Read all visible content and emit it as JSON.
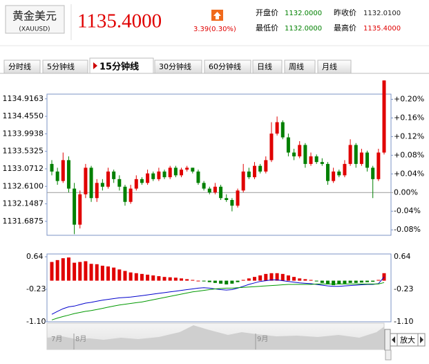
{
  "header": {
    "name": "黄金美元",
    "code": "(XAUUSD)",
    "price": "1135.4000",
    "change": "3.39(0.30%)",
    "stats": [
      {
        "label": "开盘价",
        "value": "1132.0000"
      },
      {
        "label": "昨收价",
        "value": "1132.0100"
      },
      {
        "label": "最低价",
        "value": "1132.0000"
      },
      {
        "label": "最高价",
        "value": "1135.4000"
      }
    ]
  },
  "tabs": [
    "分时线",
    "5分钟线",
    "15分钟线",
    "30分钟线",
    "60分钟线",
    "日线",
    "周线",
    "月线"
  ],
  "navigator": {
    "labels": [
      "7月",
      "8月",
      "9月"
    ],
    "button": "放大"
  },
  "chart_data": [
    {
      "type": "candlestick",
      "up_color": "#e00000",
      "down_color": "#008000",
      "open": [
        1133.2,
        1133.0,
        1132.75,
        1133.3,
        1132.55,
        1131.6,
        1132.4,
        1133.1,
        1132.3,
        1132.7,
        1132.6,
        1133.0,
        1132.8,
        1132.6,
        1132.2,
        1132.55,
        1132.8,
        1132.7,
        1132.95,
        1132.8,
        1133.0,
        1132.85,
        1133.1,
        1132.9,
        1133.05,
        1133.1,
        1133.0,
        1132.7,
        1132.55,
        1132.45,
        1132.6,
        1132.3,
        1132.25,
        1132.1,
        1132.5,
        1133.0,
        1132.85,
        1133.15,
        1133.0,
        1133.3,
        1134.0,
        1134.3,
        1133.9,
        1133.5,
        1133.4,
        1133.7,
        1133.2,
        1133.4,
        1133.25,
        1133.2,
        1132.75,
        1133.0,
        1132.9,
        1133.2,
        1133.7,
        1133.2,
        1133.5,
        1133.1,
        1132.8,
        1133.5
      ],
      "high": [
        1133.3,
        1133.1,
        1133.5,
        1133.4,
        1132.7,
        1132.5,
        1133.2,
        1133.15,
        1132.8,
        1132.8,
        1133.1,
        1133.05,
        1132.9,
        1132.65,
        1132.65,
        1132.9,
        1132.85,
        1133.05,
        1133.0,
        1133.1,
        1133.05,
        1133.15,
        1133.15,
        1133.1,
        1133.15,
        1133.1,
        1133.05,
        1132.75,
        1132.6,
        1132.7,
        1132.65,
        1132.4,
        1132.3,
        1132.55,
        1133.2,
        1133.1,
        1133.25,
        1133.2,
        1133.4,
        1134.3,
        1134.45,
        1134.35,
        1134.0,
        1133.6,
        1133.8,
        1133.75,
        1133.5,
        1133.45,
        1133.35,
        1133.25,
        1133.1,
        1133.05,
        1133.3,
        1133.85,
        1133.75,
        1133.6,
        1133.55,
        1133.15,
        1133.6,
        1135.4
      ],
      "low": [
        1132.9,
        1132.65,
        1132.7,
        1132.45,
        1131.35,
        1131.5,
        1132.3,
        1132.2,
        1132.2,
        1132.5,
        1132.55,
        1132.7,
        1132.5,
        1132.1,
        1132.15,
        1132.5,
        1132.65,
        1132.65,
        1132.75,
        1132.75,
        1132.8,
        1132.8,
        1132.85,
        1132.85,
        1133.0,
        1132.95,
        1132.65,
        1132.5,
        1132.4,
        1132.4,
        1132.25,
        1132.2,
        1131.95,
        1132.05,
        1132.45,
        1132.8,
        1132.8,
        1132.95,
        1132.95,
        1133.25,
        1133.95,
        1133.85,
        1133.4,
        1133.3,
        1133.35,
        1133.1,
        1133.15,
        1133.2,
        1133.15,
        1132.65,
        1132.7,
        1132.85,
        1132.85,
        1133.15,
        1133.1,
        1133.15,
        1133.0,
        1132.3,
        1132.75,
        1133.45
      ],
      "close": [
        1133.0,
        1132.75,
        1133.3,
        1132.55,
        1131.6,
        1132.4,
        1133.1,
        1132.3,
        1132.7,
        1132.6,
        1133.0,
        1132.8,
        1132.6,
        1132.2,
        1132.55,
        1132.8,
        1132.7,
        1132.95,
        1132.8,
        1133.0,
        1132.85,
        1133.1,
        1132.9,
        1133.05,
        1133.1,
        1133.0,
        1132.7,
        1132.55,
        1132.45,
        1132.6,
        1132.3,
        1132.25,
        1132.1,
        1132.5,
        1133.0,
        1132.85,
        1133.15,
        1133.0,
        1133.3,
        1134.0,
        1134.3,
        1133.9,
        1133.5,
        1133.4,
        1133.7,
        1133.2,
        1133.4,
        1133.25,
        1133.2,
        1132.75,
        1133.0,
        1132.9,
        1133.2,
        1133.7,
        1133.2,
        1133.5,
        1133.1,
        1132.8,
        1133.5,
        1135.4
      ],
      "ylim": [
        1131.32,
        1135.04
      ],
      "yticks": [
        1134.9163,
        {
          "value": 1134.455,
          "label": "1134.4550"
        },
        1133.9938,
        1133.5325,
        1133.0712,
        {
          "value": 1132.61,
          "label": "1132.6100"
        },
        1132.1487,
        1131.6875
      ],
      "y2lim": [
        -0.0916,
        0.2111
      ],
      "y2ticks": [
        {
          "value": 0.2,
          "label": "+0.20%"
        },
        {
          "value": 0.16,
          "label": "+0.16%"
        },
        {
          "value": 0.12,
          "label": "+0.12%"
        },
        {
          "value": 0.08,
          "label": "+0.08%"
        },
        {
          "value": 0.04,
          "label": "+0.04%"
        },
        {
          "value": 0,
          "label": "0.00%"
        },
        {
          "value": -0.04,
          "label": "-0.04%"
        },
        {
          "value": -0.08,
          "label": "-0.08%"
        }
      ]
    },
    {
      "type": "macd",
      "up_color": "#e00000",
      "down_color": "#008000",
      "values": [
        0.5,
        0.55,
        0.6,
        0.62,
        0.48,
        0.5,
        0.52,
        0.45,
        0.44,
        0.4,
        0.38,
        0.35,
        0.3,
        0.26,
        0.22,
        0.2,
        0.18,
        0.16,
        0.14,
        0.12,
        0.1,
        0.09,
        0.08,
        0.06,
        0.04,
        0.02,
        0.0,
        -0.02,
        -0.04,
        -0.06,
        -0.08,
        -0.1,
        -0.08,
        -0.04,
        0.02,
        0.06,
        0.1,
        0.14,
        0.18,
        0.2,
        0.2,
        0.18,
        0.14,
        0.1,
        0.06,
        0.04,
        0.02,
        -0.02,
        -0.06,
        -0.1,
        -0.12,
        -0.1,
        -0.08,
        -0.06,
        -0.06,
        -0.05,
        -0.04,
        -0.03,
        0.02,
        0.2
      ],
      "lines": [
        {
          "color": "#0000cc",
          "values": [
            -0.9,
            -0.82,
            -0.75,
            -0.7,
            -0.68,
            -0.64,
            -0.6,
            -0.58,
            -0.55,
            -0.52,
            -0.5,
            -0.48,
            -0.46,
            -0.45,
            -0.44,
            -0.42,
            -0.4,
            -0.38,
            -0.36,
            -0.34,
            -0.32,
            -0.3,
            -0.28,
            -0.26,
            -0.24,
            -0.22,
            -0.2,
            -0.19,
            -0.2,
            -0.22,
            -0.24,
            -0.25,
            -0.24,
            -0.2,
            -0.15,
            -0.1,
            -0.06,
            -0.02,
            0.0,
            0.02,
            0.02,
            0.0,
            -0.02,
            -0.04,
            -0.06,
            -0.07,
            -0.08,
            -0.1,
            -0.12,
            -0.14,
            -0.15,
            -0.15,
            -0.14,
            -0.13,
            -0.12,
            -0.11,
            -0.1,
            -0.1,
            -0.08,
            0.1
          ]
        },
        {
          "color": "#009900",
          "values": [
            -1.05,
            -1.0,
            -0.96,
            -0.92,
            -0.88,
            -0.85,
            -0.82,
            -0.8,
            -0.77,
            -0.74,
            -0.71,
            -0.68,
            -0.65,
            -0.63,
            -0.61,
            -0.59,
            -0.57,
            -0.54,
            -0.51,
            -0.48,
            -0.45,
            -0.42,
            -0.39,
            -0.36,
            -0.33,
            -0.3,
            -0.28,
            -0.26,
            -0.24,
            -0.22,
            -0.21,
            -0.2,
            -0.2,
            -0.19,
            -0.18,
            -0.17,
            -0.16,
            -0.15,
            -0.14,
            -0.13,
            -0.12,
            -0.11,
            -0.1,
            -0.1,
            -0.1,
            -0.1,
            -0.1,
            -0.09,
            -0.09,
            -0.09,
            -0.09,
            -0.09,
            -0.09,
            -0.09,
            -0.09,
            -0.09,
            -0.09,
            -0.09,
            -0.09,
            -0.05
          ]
        }
      ],
      "ylim": [
        -1.1,
        0.714
      ],
      "yticks": [
        0.64,
        -0.23,
        {
          "value": -1.1,
          "label": "-1.10"
        }
      ]
    }
  ]
}
